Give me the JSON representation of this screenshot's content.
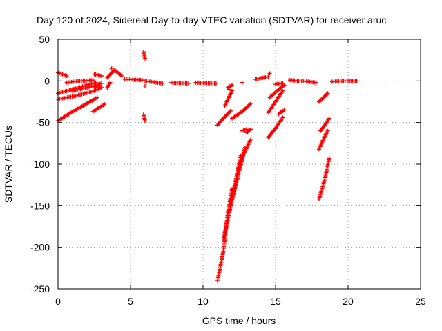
{
  "chart_data": {
    "type": "scatter",
    "title": "Day 120 of 2024, Sidereal Day-to-day VTEC variation (SDTVAR) for receiver aruc",
    "xlabel": "GPS time / hours",
    "ylabel": "SDTVAR / TECUs",
    "xlim": [
      0,
      25
    ],
    "ylim": [
      -250,
      50
    ],
    "xticks": [
      0,
      5,
      10,
      15,
      20,
      25
    ],
    "yticks": [
      -250,
      -200,
      -150,
      -100,
      -50,
      0,
      50
    ],
    "grid": true,
    "marker": "plus",
    "color": "#ff0000",
    "segments": [
      {
        "x": [
          0.0,
          0.6
        ],
        "y": [
          10,
          6
        ]
      },
      {
        "x": [
          0.0,
          1.0,
          2.0,
          2.6
        ],
        "y": [
          -15,
          -10,
          -5,
          -2
        ]
      },
      {
        "x": [
          0.0,
          1.2,
          2.5,
          3.0
        ],
        "y": [
          -22,
          -18,
          -12,
          -8
        ]
      },
      {
        "x": [
          0.0,
          1.0,
          2.0,
          2.7
        ],
        "y": [
          -48,
          -37,
          -27,
          -20
        ]
      },
      {
        "x": [
          0.6,
          1.5,
          2.4
        ],
        "y": [
          -2,
          0,
          1
        ]
      },
      {
        "x": [
          1.0,
          2.0,
          3.0
        ],
        "y": [
          -12,
          -8,
          -3
        ]
      },
      {
        "x": [
          2.4,
          3.2
        ],
        "y": [
          -37,
          -28
        ]
      },
      {
        "x": [
          2.5,
          3.0
        ],
        "y": [
          8,
          6
        ]
      },
      {
        "x": [
          2.5,
          3.0
        ],
        "y": [
          -8,
          -6
        ]
      },
      {
        "x": [
          3.4,
          3.9,
          4.4
        ],
        "y": [
          4,
          13,
          6
        ]
      },
      {
        "x": [
          3.4,
          3.6
        ],
        "y": [
          -8,
          -2
        ]
      },
      {
        "x": [
          4.6,
          5.8
        ],
        "y": [
          2,
          1
        ]
      },
      {
        "x": [
          5.9,
          6.0
        ],
        "y": [
          35,
          27
        ]
      },
      {
        "x": [
          5.9,
          6.0
        ],
        "y": [
          -40,
          -48
        ]
      },
      {
        "x": [
          6.0,
          7.2
        ],
        "y": [
          0,
          -3
        ]
      },
      {
        "x": [
          7.8,
          9.0
        ],
        "y": [
          -2,
          -3
        ]
      },
      {
        "x": [
          9.5,
          10.9
        ],
        "y": [
          -2,
          -3
        ]
      },
      {
        "x": [
          11.0,
          11.4,
          11.7,
          12.0
        ],
        "y": [
          -240,
          -205,
          -160,
          -130
        ]
      },
      {
        "x": [
          11.4,
          11.8,
          12.2,
          12.6
        ],
        "y": [
          -190,
          -160,
          -125,
          -90
        ]
      },
      {
        "x": [
          11.9,
          12.4,
          12.9
        ],
        "y": [
          -150,
          -115,
          -80
        ]
      },
      {
        "x": [
          12.3,
          12.8,
          13.3
        ],
        "y": [
          -115,
          -88,
          -70
        ]
      },
      {
        "x": [
          11.0,
          11.4,
          11.9
        ],
        "y": [
          -53,
          -45,
          -36
        ]
      },
      {
        "x": [
          11.5,
          12.0
        ],
        "y": [
          -30,
          -12
        ]
      },
      {
        "x": [
          12.0,
          12.7,
          13.3
        ],
        "y": [
          -45,
          -37,
          -27
        ]
      },
      {
        "x": [
          12.7,
          13.0
        ],
        "y": [
          -60,
          -58
        ]
      },
      {
        "x": [
          13.0,
          13.3
        ],
        "y": [
          -62,
          -58
        ]
      },
      {
        "x": [
          11.7,
          12.0
        ],
        "y": [
          -8,
          -5
        ]
      },
      {
        "x": [
          13.6,
          14.5
        ],
        "y": [
          2,
          5
        ]
      },
      {
        "x": [
          14.5,
          15.0,
          15.5
        ],
        "y": [
          -68,
          -57,
          -44
        ]
      },
      {
        "x": [
          14.5,
          15.0,
          15.5
        ],
        "y": [
          -38,
          -25,
          -12
        ]
      },
      {
        "x": [
          14.6,
          15.1,
          15.6
        ],
        "y": [
          -20,
          -12,
          -5
        ]
      },
      {
        "x": [
          15.2,
          15.6
        ],
        "y": [
          -40,
          -35
        ]
      },
      {
        "x": [
          15.0,
          15.5
        ],
        "y": [
          -4,
          -3
        ]
      },
      {
        "x": [
          16.0,
          16.6
        ],
        "y": [
          1,
          0
        ]
      },
      {
        "x": [
          16.8,
          17.8
        ],
        "y": [
          0,
          -2
        ]
      },
      {
        "x": [
          18.0,
          18.4,
          18.7
        ],
        "y": [
          -142,
          -118,
          -93
        ]
      },
      {
        "x": [
          18.0,
          18.3,
          18.6
        ],
        "y": [
          -82,
          -70,
          -60
        ]
      },
      {
        "x": [
          18.1,
          18.4,
          18.7
        ],
        "y": [
          -60,
          -53,
          -45
        ]
      },
      {
        "x": [
          18.0,
          18.3,
          18.6
        ],
        "y": [
          -25,
          -20,
          -15
        ]
      },
      {
        "x": [
          18.9,
          19.8
        ],
        "y": [
          -1,
          0
        ]
      },
      {
        "x": [
          20.0,
          20.6
        ],
        "y": [
          0,
          0
        ]
      }
    ],
    "isolated_points": [
      {
        "x": 11.8,
        "y": -10
      },
      {
        "x": 12.7,
        "y": -2
      },
      {
        "x": 14.6,
        "y": 9
      },
      {
        "x": 6.0,
        "y": -6
      },
      {
        "x": 20.5,
        "y": 0
      },
      {
        "x": 3.7,
        "y": 15
      }
    ]
  }
}
